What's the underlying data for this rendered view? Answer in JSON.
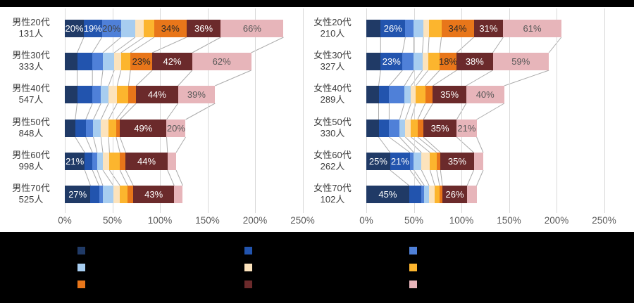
{
  "page": {
    "background": "#FFFFFF",
    "top_redaction_bar_color": "#000000"
  },
  "chart_data": {
    "type": "bar",
    "variant": "horizontal-stacked-multi-response",
    "x_axis": {
      "tick_labels": [
        "0%",
        "50%",
        "100%",
        "150%",
        "200%",
        "250%"
      ],
      "min": 0,
      "max": 250,
      "grid": true
    },
    "data_label_format": "{value}%",
    "data_label_threshold_pct": 18,
    "series": [
      {
        "name": "series-1-dark-navy",
        "color": "#203A66",
        "label_text_color": "#FFFFFF"
      },
      {
        "name": "series-2-royal-blue",
        "color": "#2254AE",
        "label_text_color": "#FFFFFF"
      },
      {
        "name": "series-3-cornflower",
        "color": "#4F80D8",
        "label_text_color": "#404040"
      },
      {
        "name": "series-4-light-blue",
        "color": "#A7CDF0",
        "label_text_color": "#404040"
      },
      {
        "name": "series-5-cream",
        "color": "#FCE3BC",
        "label_text_color": "#404040"
      },
      {
        "name": "series-6-amber",
        "color": "#FCB52E",
        "label_text_color": "#404040"
      },
      {
        "name": "series-7-orange",
        "color": "#E8761A",
        "label_text_color": "#262626"
      },
      {
        "name": "series-8-maroon",
        "color": "#6B2A2B",
        "label_text_color": "#FFFFFF"
      },
      {
        "name": "series-9-pink",
        "color": "#E7B5BA",
        "label_text_color": "#595959"
      }
    ],
    "charts": [
      {
        "name": "male",
        "rows": [
          {
            "line1": "男性20代",
            "line2": "131人",
            "values": [
              20,
              19,
              20,
              15,
              9,
              11,
              34,
              36,
              66
            ]
          },
          {
            "line1": "男性30代",
            "line2": "333人",
            "values": [
              13,
              16,
              11,
              12,
              7,
              10,
              23,
              42,
              62
            ]
          },
          {
            "line1": "男性40代",
            "line2": "547人",
            "values": [
              13,
              16,
              9,
              8,
              9,
              12,
              8,
              44,
              39
            ]
          },
          {
            "line1": "男性50代",
            "line2": "848人",
            "values": [
              11,
              11,
              8,
              8,
              8,
              8,
              4,
              49,
              20
            ]
          },
          {
            "line1": "男性60代",
            "line2": "998人",
            "values": [
              21,
              8,
              5,
              6,
              7,
              11,
              6,
              44,
              9
            ]
          },
          {
            "line1": "男性70代",
            "line2": "525人",
            "values": [
              27,
              9,
              4,
              11,
              7,
              8,
              6,
              43,
              9
            ]
          }
        ]
      },
      {
        "name": "female",
        "rows": [
          {
            "line1": "女性20代",
            "line2": "210人",
            "values": [
              15,
              26,
              9,
              10,
              6,
              13,
              34,
              31,
              61
            ]
          },
          {
            "line1": "女性30代",
            "line2": "327人",
            "values": [
              15,
              23,
              12,
              9,
              6,
              12,
              18,
              38,
              59
            ]
          },
          {
            "line1": "女性40代",
            "line2": "289人",
            "values": [
              13,
              11,
              16,
              7,
              5,
              10,
              8,
              35,
              40
            ]
          },
          {
            "line1": "女性50代",
            "line2": "330人",
            "values": [
              13,
              11,
              11,
              6,
              6,
              7,
              6,
              35,
              21
            ]
          },
          {
            "line1": "女性60代",
            "line2": "262人",
            "values": [
              25,
              21,
              4,
              8,
              9,
              7,
              4,
              35,
              10
            ]
          },
          {
            "line1": "女性70代",
            "line2": "102人",
            "values": [
              45,
              13,
              3,
              5,
              6,
              5,
              3,
              26,
              10
            ]
          }
        ]
      }
    ],
    "gridline_color": "#D9D9D9",
    "connector_line_color": "#ABABAB",
    "axis_text_color": "#595959",
    "category_text_color": "#3C3C3C"
  },
  "legend": {
    "background": "#000000",
    "labels_visible": false,
    "column_series_order": [
      [
        1,
        4,
        7
      ],
      [
        2,
        5,
        8
      ],
      [
        3,
        6,
        9
      ]
    ]
  }
}
